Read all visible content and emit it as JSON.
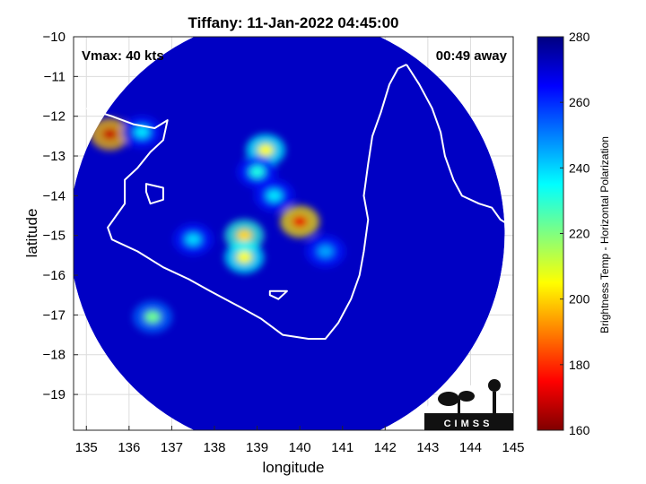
{
  "chart_data": {
    "type": "heatmap",
    "title": "Tiffany: 11-Jan-2022 04:45:00",
    "xlabel": "longitude",
    "ylabel": "latitude",
    "xlim": [
      134.7,
      145
    ],
    "ylim": [
      -19.9,
      -10
    ],
    "xticks": [
      135,
      136,
      137,
      138,
      139,
      140,
      141,
      142,
      143,
      144,
      145
    ],
    "yticks": [
      -10,
      -11,
      -12,
      -13,
      -14,
      -15,
      -16,
      -17,
      -18,
      -19
    ],
    "grid": true,
    "annotations": {
      "vmax": "Vmax: 40 kts",
      "time_away": "00:49 away"
    },
    "colorbar": {
      "label": "Brightness Temp - Horizontal Polarization",
      "ticks": [
        160,
        180,
        200,
        220,
        240,
        260,
        280
      ],
      "range": [
        160,
        280
      ],
      "colormap": "jet"
    },
    "swath": {
      "center": [
        139.7,
        -14.95
      ],
      "radius_deg": 5.1,
      "background_temp": 272
    },
    "features": [
      {
        "lon": 140.0,
        "lat": -14.65,
        "temp": 172
      },
      {
        "lon": 138.7,
        "lat": -15.0,
        "temp": 200
      },
      {
        "lon": 138.7,
        "lat": -15.55,
        "temp": 205
      },
      {
        "lon": 139.2,
        "lat": -12.85,
        "temp": 205
      },
      {
        "lon": 135.55,
        "lat": -12.45,
        "temp": 168
      },
      {
        "lon": 139.0,
        "lat": -13.4,
        "temp": 232
      },
      {
        "lon": 139.4,
        "lat": -14.0,
        "temp": 238
      },
      {
        "lon": 136.55,
        "lat": -17.05,
        "temp": 222
      },
      {
        "lon": 136.3,
        "lat": -12.4,
        "temp": 238
      },
      {
        "lon": 137.5,
        "lat": -15.1,
        "temp": 240
      },
      {
        "lon": 140.6,
        "lat": -15.4,
        "temp": 246
      }
    ],
    "coastline": {
      "gulf_west": [
        [
          135.0,
          -11.8
        ],
        [
          135.6,
          -12.0
        ],
        [
          136.1,
          -12.2
        ],
        [
          136.6,
          -12.3
        ],
        [
          136.9,
          -12.1
        ],
        [
          136.8,
          -12.6
        ],
        [
          136.5,
          -12.9
        ],
        [
          136.2,
          -13.3
        ],
        [
          135.9,
          -13.6
        ],
        [
          135.9,
          -14.2
        ],
        [
          135.5,
          -14.8
        ],
        [
          135.6,
          -15.1
        ],
        [
          136.2,
          -15.4
        ],
        [
          136.8,
          -15.8
        ],
        [
          137.4,
          -16.1
        ],
        [
          137.9,
          -16.4
        ],
        [
          138.6,
          -16.8
        ],
        [
          139.1,
          -17.1
        ],
        [
          139.6,
          -17.5
        ],
        [
          140.2,
          -17.6
        ],
        [
          140.6,
          -17.6
        ],
        [
          140.9,
          -17.2
        ],
        [
          141.2,
          -16.6
        ],
        [
          141.4,
          -16.0
        ],
        [
          141.5,
          -15.4
        ],
        [
          141.6,
          -14.6
        ],
        [
          141.5,
          -14.0
        ],
        [
          141.6,
          -13.2
        ],
        [
          141.7,
          -12.5
        ],
        [
          141.9,
          -11.9
        ],
        [
          142.1,
          -11.2
        ],
        [
          142.3,
          -10.8
        ],
        [
          142.5,
          -10.7
        ]
      ],
      "cape_york_east": [
        [
          142.5,
          -10.7
        ],
        [
          142.8,
          -11.2
        ],
        [
          143.1,
          -11.8
        ],
        [
          143.3,
          -12.4
        ],
        [
          143.4,
          -13.0
        ],
        [
          143.6,
          -13.6
        ],
        [
          143.8,
          -14.0
        ],
        [
          144.2,
          -14.2
        ],
        [
          144.5,
          -14.3
        ],
        [
          144.7,
          -14.6
        ],
        [
          145.0,
          -14.8
        ]
      ],
      "groote_eylandt": [
        [
          136.4,
          -13.7
        ],
        [
          136.8,
          -13.8
        ],
        [
          136.8,
          -14.1
        ],
        [
          136.5,
          -14.2
        ],
        [
          136.4,
          -13.9
        ]
      ],
      "mornington_island": [
        [
          139.3,
          -16.4
        ],
        [
          139.7,
          -16.4
        ],
        [
          139.5,
          -16.6
        ],
        [
          139.3,
          -16.5
        ]
      ]
    },
    "logo": {
      "text": "CIMSS"
    }
  }
}
